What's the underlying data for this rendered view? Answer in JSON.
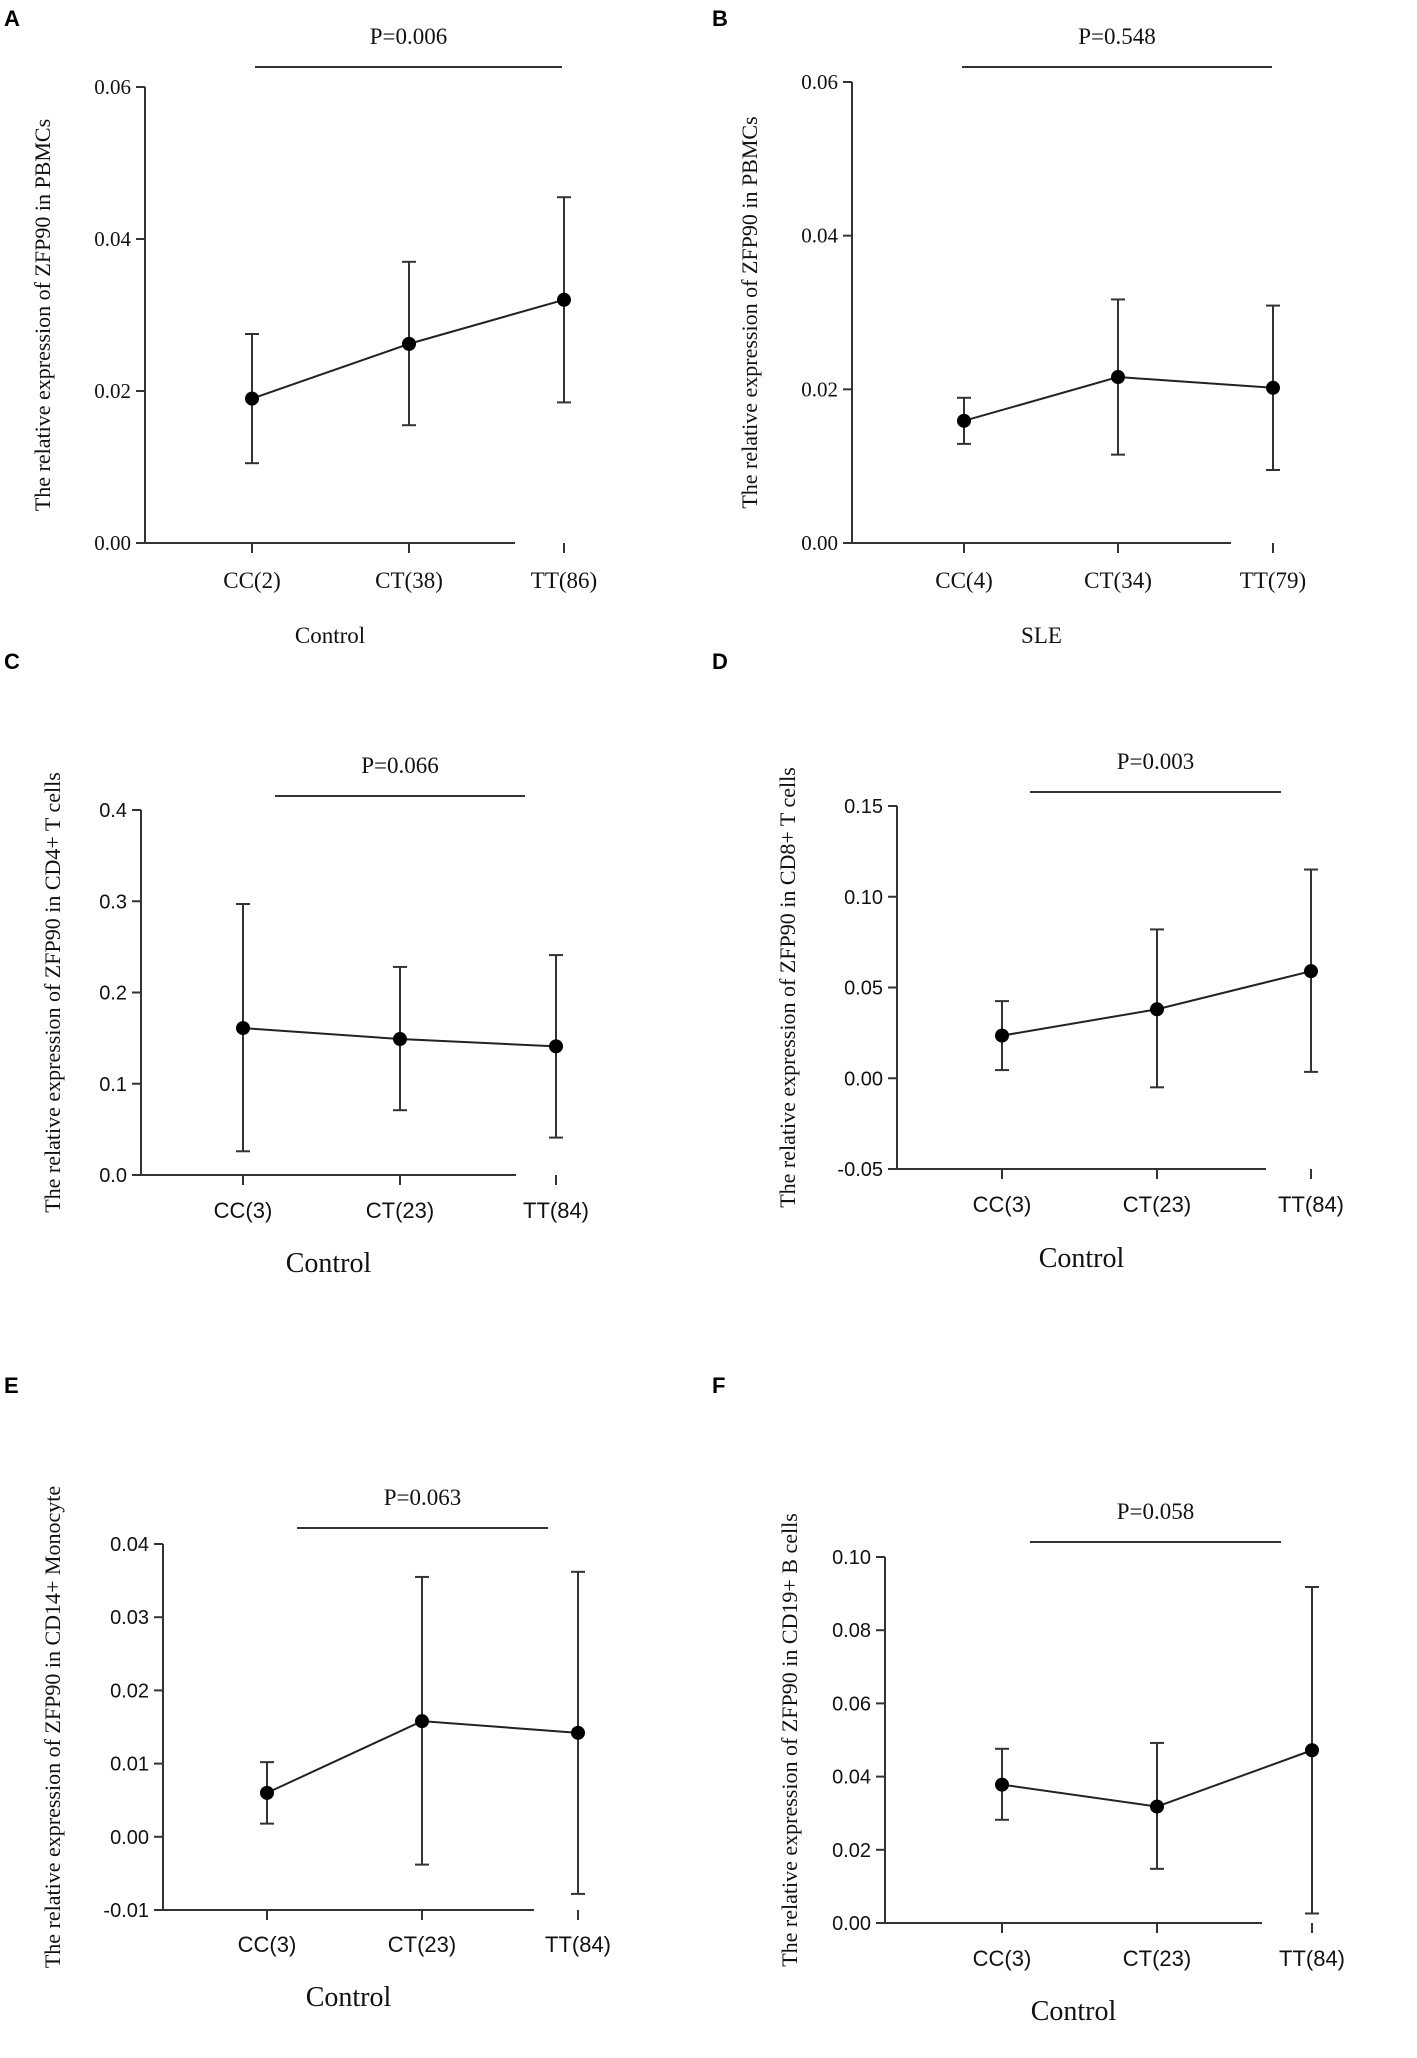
{
  "chart_data": [
    {
      "panel": "A",
      "type": "line",
      "title": "",
      "xlabel": "Control",
      "ylabel": "The relative expression of ZFP90 in PBMCs",
      "categories": [
        "CC(2)",
        "CT(38)",
        "TT(86)"
      ],
      "values": [
        0.019,
        0.0262,
        0.032
      ],
      "error_low": [
        0.0105,
        0.0155,
        0.0185
      ],
      "error_high": [
        0.0275,
        0.037,
        0.0455
      ],
      "ylim": [
        0,
        0.06
      ],
      "yticks": [
        0,
        0.02,
        0.04,
        0.06
      ],
      "ytick_labels": [
        "0.00",
        "0.02",
        "0.04",
        "0.06"
      ],
      "significance": {
        "label": "P=0.006",
        "y": 0.0618
      }
    },
    {
      "panel": "B",
      "type": "line",
      "title": "",
      "xlabel": "SLE",
      "ylabel": "The relative expression of ZFP90 in PBMCs",
      "categories": [
        "CC(4)",
        "CT(34)",
        "TT(79)"
      ],
      "values": [
        0.0159,
        0.0216,
        0.0202
      ],
      "error_low": [
        0.0129,
        0.0115,
        0.0095
      ],
      "error_high": [
        0.0189,
        0.0317,
        0.0309
      ],
      "ylim": [
        0,
        0.06
      ],
      "yticks": [
        0,
        0.02,
        0.04,
        0.06
      ],
      "ytick_labels": [
        "0.00",
        "0.02",
        "0.04",
        "0.06"
      ],
      "significance": {
        "label": "P=0.548",
        "y": 0.0622
      }
    },
    {
      "panel": "C",
      "type": "line",
      "title": "",
      "xlabel": "Control",
      "ylabel": "The relative expression of ZFP90 in CD4+ T cells",
      "categories": [
        "CC(3)",
        "CT(23)",
        "TT(84)"
      ],
      "values": [
        0.161,
        0.149,
        0.141
      ],
      "error_low": [
        0.026,
        0.071,
        0.041
      ],
      "error_high": [
        0.297,
        0.228,
        0.241
      ],
      "ylim": [
        0,
        0.4
      ],
      "yticks": [
        0,
        0.1,
        0.2,
        0.3,
        0.4
      ],
      "ytick_labels": [
        "0.0",
        "0.1",
        "0.2",
        "0.3",
        "0.4"
      ],
      "significance": {
        "label": "P=0.066",
        "y": 0.415
      }
    },
    {
      "panel": "D",
      "type": "line",
      "title": "",
      "xlabel": "Control",
      "ylabel": "The relative expression of ZFP90 in CD8+ T cells",
      "categories": [
        "CC(3)",
        "CT(23)",
        "TT(84)"
      ],
      "values": [
        0.0235,
        0.038,
        0.059
      ],
      "error_low": [
        0.0045,
        -0.005,
        0.0035
      ],
      "error_high": [
        0.0425,
        0.082,
        0.115
      ],
      "ylim": [
        -0.05,
        0.15
      ],
      "yticks": [
        -0.05,
        0,
        0.05,
        0.1,
        0.15
      ],
      "ytick_labels": [
        "-0.05",
        "0.00",
        "0.05",
        "0.10",
        "0.15"
      ],
      "significance": {
        "label": "P=0.003",
        "y": 0.1565
      }
    },
    {
      "panel": "E",
      "type": "line",
      "title": "",
      "xlabel": "Control",
      "ylabel": "The relative expression of ZFP90 in CD14+ Monocyte",
      "categories": [
        "CC(3)",
        "CT(23)",
        "TT(84)"
      ],
      "values": [
        0.006,
        0.0158,
        0.0142
      ],
      "error_low": [
        0.0018,
        -0.0038,
        -0.0078
      ],
      "error_high": [
        0.0102,
        0.0355,
        0.0362
      ],
      "ylim": [
        -0.01,
        0.04
      ],
      "yticks": [
        -0.01,
        0,
        0.01,
        0.02,
        0.03,
        0.04
      ],
      "ytick_labels": [
        "-0.01",
        "0.00",
        "0.01",
        "0.02",
        "0.03",
        "0.04"
      ],
      "significance": {
        "label": "P=0.063",
        "y": 0.0414
      }
    },
    {
      "panel": "F",
      "type": "line",
      "title": "",
      "xlabel": "Control",
      "ylabel": "The relative expression of ZFP90 in CD19+ B cells",
      "categories": [
        "CC(3)",
        "CT(23)",
        "TT(84)"
      ],
      "values": [
        0.0378,
        0.0318,
        0.0472
      ],
      "error_low": [
        0.0282,
        0.0148,
        0.0026
      ],
      "error_high": [
        0.0476,
        0.0492,
        0.0918
      ],
      "ylim": [
        0,
        0.1
      ],
      "yticks": [
        0,
        0.02,
        0.04,
        0.06,
        0.08,
        0.1
      ],
      "ytick_labels": [
        "0.00",
        "0.02",
        "0.04",
        "0.06",
        "0.08",
        "0.10"
      ],
      "significance": {
        "label": "P=0.058",
        "y": 0.1035
      }
    }
  ]
}
